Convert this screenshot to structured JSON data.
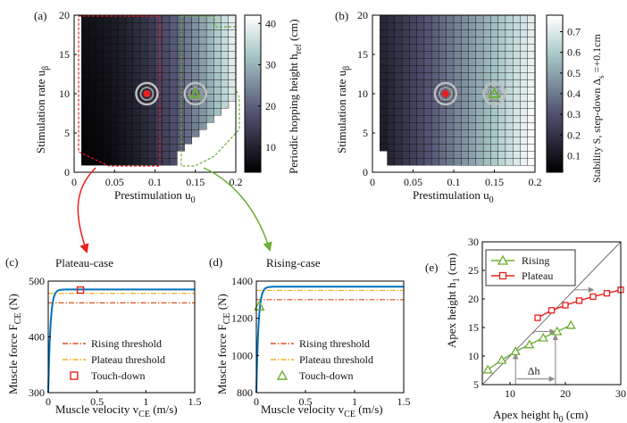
{
  "colors": {
    "axis": "#000000",
    "red": "#e8201c",
    "green": "#6cae33",
    "orange_dash": "#d95319",
    "yellow_dash": "#edb120",
    "blue": "#0072bd",
    "grey": "#8c8c8c"
  },
  "chart_data": [
    {
      "id": "a",
      "panel_label": "(a)",
      "type": "heatmap",
      "xlabel_main": "Prestimulation u",
      "xlabel_sub": "0",
      "ylabel_main": "Stimulation rate u",
      "ylabel_sub": "β",
      "xlim": [
        0,
        0.2
      ],
      "ylim": [
        0,
        20
      ],
      "xticks": [
        "0",
        "0.05",
        "0.1",
        "0.15",
        "0.2"
      ],
      "yticks": [
        "0",
        "5",
        "10",
        "15",
        "20"
      ],
      "colorbar_label_main": "Periodic hopping height h",
      "colorbar_label_sub": "ref",
      "colorbar_label_tail": " (cm)",
      "colorbar_ticks": [
        "10",
        "20",
        "30",
        "40"
      ],
      "colorbar_range": [
        4,
        42
      ],
      "colormap": "bone",
      "nx": 22,
      "ny": 22,
      "min_u_beta_by_column": [
        20,
        0.9,
        0.9,
        0.9,
        0.9,
        0.9,
        0.9,
        0.9,
        0.9,
        0.9,
        0.9,
        0.9,
        0.9,
        0.9,
        2.0,
        2.9,
        3.8,
        4.8,
        5.7,
        6.7,
        7.6,
        8.6
      ],
      "markers": [
        {
          "label": "Plateau-case",
          "u0": 0.09,
          "u_beta": 10,
          "shape": "circle"
        },
        {
          "label": "Rising-case",
          "u0": 0.15,
          "u_beta": 10,
          "shape": "triangle"
        }
      ],
      "annotations": [
        "Plateau-case",
        "Rising-case"
      ]
    },
    {
      "id": "b",
      "panel_label": "(b)",
      "type": "heatmap",
      "xlabel_main": "Prestimulation u",
      "xlabel_sub": "0",
      "ylabel_main": "Stimulation rate u",
      "ylabel_sub": "β",
      "xlim": [
        0,
        0.2
      ],
      "ylim": [
        0,
        20
      ],
      "xticks": [
        "0",
        "0.05",
        "0.1",
        "0.15",
        "0.2"
      ],
      "yticks": [
        "0",
        "5",
        "10",
        "15",
        "20"
      ],
      "colorbar_label_main": "Stability S, step-down Δ",
      "colorbar_label_sub": "s",
      "colorbar_label_tail": " =+0.1cm",
      "colorbar_ticks": [
        "0.1",
        "0.2",
        "0.3",
        "0.4",
        "0.5",
        "0.6",
        "0.7"
      ],
      "colorbar_range": [
        0.02,
        0.78
      ],
      "colormap": "bone",
      "nx": 22,
      "ny": 22,
      "min_u_beta_by_column": [
        20,
        2.0,
        0.9,
        0.9,
        0.9,
        0.9,
        0.9,
        0.9,
        0.9,
        0.9,
        0.9,
        0.9,
        0.9,
        0.9,
        0.9,
        0.9,
        0.9,
        0.9,
        0.9,
        0.9,
        0.9,
        0.9
      ],
      "markers": [
        {
          "u0": 0.09,
          "u_beta": 10,
          "shape": "circle"
        },
        {
          "u0": 0.15,
          "u_beta": 10,
          "shape": "triangle"
        }
      ]
    },
    {
      "id": "c",
      "panel_label": "(c)",
      "type": "line",
      "title": "Plateau-case",
      "xlabel_main": "Muscle velocity v",
      "xlabel_sub": "CE",
      "xlabel_tail": " (m/s)",
      "ylabel_main": "Muscle force F",
      "ylabel_sub": "CE",
      "ylabel_tail": " (N)",
      "xlim": [
        0,
        1.5
      ],
      "ylim": [
        300,
        500
      ],
      "xticks": [
        "0",
        "0.5",
        "1",
        "1.5"
      ],
      "xtick_values": [
        0,
        0.5,
        1,
        1.5
      ],
      "yticks": [
        "300",
        "400",
        "500"
      ],
      "ytick_values": [
        300,
        400,
        500
      ],
      "curve_fmax": 485,
      "curve_f0": 300,
      "curve_k": 45,
      "rising_threshold": 461,
      "plateau_threshold": 478,
      "touch_down": {
        "x": 0.33,
        "y": 484
      },
      "legend": [
        "Rising threshold",
        "Plateau threshold",
        "Touch-down"
      ]
    },
    {
      "id": "d",
      "panel_label": "(d)",
      "type": "line",
      "title": "Rising-case",
      "xlabel_main": "Muscle velocity v",
      "xlabel_sub": "CE",
      "xlabel_tail": " (m/s)",
      "ylabel_main": "Muscle force F",
      "ylabel_sub": "CE",
      "ylabel_tail": " (N)",
      "xlim": [
        0,
        1.5
      ],
      "ylim": [
        800,
        1400
      ],
      "xticks": [
        "0",
        "0.5",
        "1",
        "1.5"
      ],
      "xtick_values": [
        0,
        0.5,
        1,
        1.5
      ],
      "yticks": [
        "800",
        "1000",
        "1200",
        "1400"
      ],
      "ytick_values": [
        800,
        1000,
        1200,
        1400
      ],
      "curve_fmax": 1370,
      "curve_f0": 800,
      "curve_k": 45,
      "rising_threshold": 1300,
      "plateau_threshold": 1350,
      "touch_down": {
        "x": 0.03,
        "y": 1265
      },
      "legend": [
        "Rising threshold",
        "Plateau threshold",
        "Touch-down"
      ]
    },
    {
      "id": "e",
      "panel_label": "(e)",
      "type": "scatter",
      "xlabel_main": "Apex height h",
      "xlabel_sub": "0",
      "xlabel_tail": " (cm)",
      "ylabel_main": "Apex height h",
      "ylabel_sub": "1",
      "ylabel_tail": " (cm)",
      "xlim": [
        5,
        30
      ],
      "ylim": [
        5,
        30
      ],
      "xticks": [
        "10",
        "20",
        "30"
      ],
      "xtick_values": [
        10,
        20,
        30
      ],
      "yticks": [
        "5",
        "10",
        "15",
        "20",
        "25",
        "30"
      ],
      "ytick_values": [
        5,
        10,
        15,
        20,
        25,
        30
      ],
      "series": [
        {
          "name": "Rising",
          "color": "#6cae33",
          "marker": "triangle",
          "x": [
            6,
            8.5,
            11,
            13.5,
            16,
            18.5,
            21
          ],
          "y": [
            7.6,
            9.3,
            10.8,
            12.0,
            13.2,
            14.3,
            15.4
          ]
        },
        {
          "name": "Plateau",
          "color": "#e8201c",
          "marker": "square",
          "x": [
            15,
            17.5,
            20,
            22.5,
            25,
            27.5,
            30
          ],
          "y": [
            16.7,
            18.0,
            18.9,
            19.7,
            20.4,
            21.0,
            21.6
          ]
        }
      ],
      "identity_line": true,
      "annotation": "Δh"
    }
  ]
}
